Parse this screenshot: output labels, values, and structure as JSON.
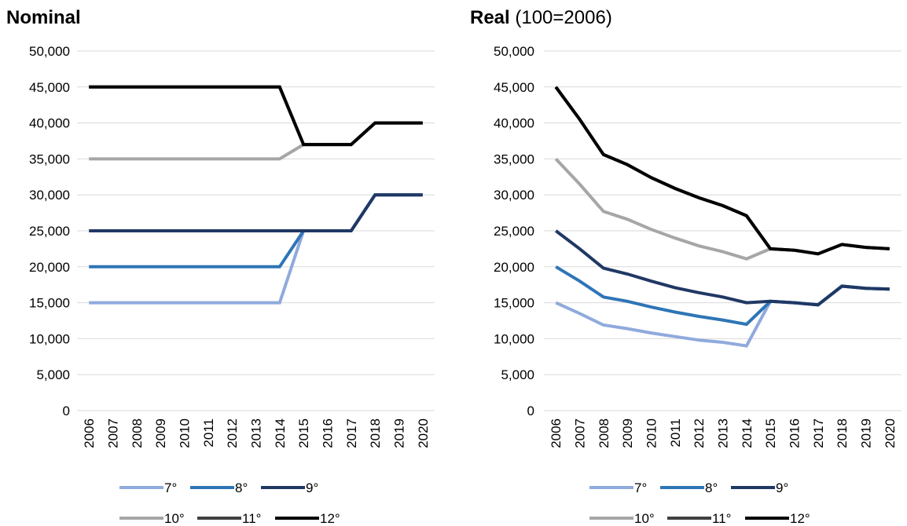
{
  "chart_data": [
    {
      "type": "line",
      "title": "Nominal",
      "subtitle": "",
      "ylim": [
        0,
        50000
      ],
      "y_ticks": [
        "0",
        "5,000",
        "10,000",
        "15,000",
        "20,000",
        "25,000",
        "30,000",
        "35,000",
        "40,000",
        "45,000",
        "50,000"
      ],
      "grid": true,
      "legend_position": "bottom",
      "x": [
        "2006",
        "2007",
        "2008",
        "2009",
        "2010",
        "2011",
        "2012",
        "2013",
        "2014",
        "2015",
        "2016",
        "2017",
        "2018",
        "2019",
        "2020"
      ],
      "series": [
        {
          "name": "7°",
          "color": "#8faadc",
          "values": [
            15000,
            15000,
            15000,
            15000,
            15000,
            15000,
            15000,
            15000,
            15000,
            25000,
            25000,
            25000,
            30000,
            30000,
            30000
          ]
        },
        {
          "name": "8°",
          "color": "#2e75b6",
          "values": [
            20000,
            20000,
            20000,
            20000,
            20000,
            20000,
            20000,
            20000,
            20000,
            25000,
            25000,
            25000,
            30000,
            30000,
            30000
          ]
        },
        {
          "name": "9°",
          "color": "#203864",
          "values": [
            25000,
            25000,
            25000,
            25000,
            25000,
            25000,
            25000,
            25000,
            25000,
            25000,
            25000,
            25000,
            30000,
            30000,
            30000
          ]
        },
        {
          "name": "10°",
          "color": "#a6a6a6",
          "values": [
            35000,
            35000,
            35000,
            35000,
            35000,
            35000,
            35000,
            35000,
            35000,
            37000,
            37000,
            37000,
            40000,
            40000,
            40000
          ]
        },
        {
          "name": "11°",
          "color": "#404040",
          "values": [
            45000,
            45000,
            45000,
            45000,
            45000,
            45000,
            45000,
            45000,
            45000,
            37000,
            37000,
            37000,
            40000,
            40000,
            40000
          ]
        },
        {
          "name": "12°",
          "color": "#000000",
          "values": [
            45000,
            45000,
            45000,
            45000,
            45000,
            45000,
            45000,
            45000,
            45000,
            37000,
            37000,
            37000,
            40000,
            40000,
            40000
          ]
        }
      ]
    },
    {
      "type": "line",
      "title": "Real",
      "subtitle": "(100=2006)",
      "ylim": [
        0,
        50000
      ],
      "y_ticks": [
        "0",
        "5,000",
        "10,000",
        "15,000",
        "20,000",
        "25,000",
        "30,000",
        "35,000",
        "40,000",
        "45,000",
        "50,000"
      ],
      "grid": true,
      "legend_position": "bottom",
      "x": [
        "2006",
        "2007",
        "2008",
        "2009",
        "2010",
        "2011",
        "2012",
        "2013",
        "2014",
        "2015",
        "2016",
        "2017",
        "2018",
        "2019",
        "2020"
      ],
      "series": [
        {
          "name": "7°",
          "color": "#8faadc",
          "values": [
            15000,
            13500,
            11900,
            11400,
            10800,
            10300,
            9800,
            9500,
            9000,
            15200,
            15000,
            14700,
            17300,
            17000,
            16900
          ]
        },
        {
          "name": "8°",
          "color": "#2e75b6",
          "values": [
            20000,
            18000,
            15800,
            15200,
            14400,
            13700,
            13100,
            12600,
            12000,
            15200,
            15000,
            14700,
            17300,
            17000,
            16900
          ]
        },
        {
          "name": "9°",
          "color": "#203864",
          "values": [
            25000,
            22500,
            19800,
            19000,
            18000,
            17100,
            16400,
            15800,
            15000,
            15200,
            15000,
            14700,
            17300,
            17000,
            16900
          ]
        },
        {
          "name": "10°",
          "color": "#a6a6a6",
          "values": [
            35000,
            31500,
            27700,
            26600,
            25200,
            24000,
            22900,
            22100,
            21100,
            22500,
            null,
            null,
            null,
            null,
            null
          ]
        },
        {
          "name": "11°",
          "color": "#404040",
          "values": [
            45000,
            40500,
            35600,
            34200,
            32400,
            30900,
            29600,
            28500,
            27100,
            22500,
            22300,
            21800,
            23100,
            22700,
            22500
          ]
        },
        {
          "name": "12°",
          "color": "#000000",
          "values": [
            45000,
            40500,
            35600,
            34200,
            32400,
            30900,
            29600,
            28500,
            27100,
            22500,
            22300,
            21800,
            23100,
            22700,
            22500
          ]
        }
      ]
    }
  ]
}
